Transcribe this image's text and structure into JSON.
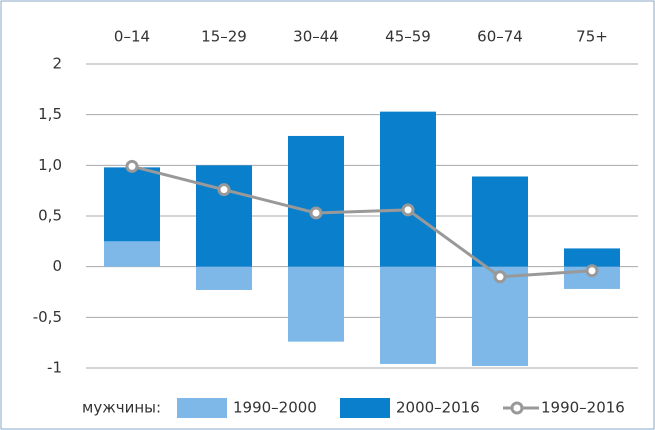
{
  "chart_data": {
    "type": "bar",
    "categories": [
      "0–14",
      "15–29",
      "30–44",
      "45–59",
      "60–74",
      "75+"
    ],
    "series": [
      {
        "name": "1990–2000",
        "color": "#7db8e8",
        "type": "bar",
        "values": [
          0.25,
          -0.23,
          -0.74,
          -0.96,
          -0.98,
          -0.22
        ]
      },
      {
        "name": "2000–2016",
        "color": "#0a80cd",
        "type": "bar",
        "values": [
          0.73,
          1.0,
          1.29,
          1.53,
          0.89,
          0.18
        ]
      },
      {
        "name": "1990–2016",
        "color": "#999999",
        "type": "line",
        "values": [
          0.99,
          0.76,
          0.53,
          0.56,
          -0.1,
          -0.04
        ]
      }
    ],
    "legend_title": "мужчины:",
    "ylim": [
      -1,
      2
    ],
    "yticks": [
      -1,
      {
        "value": -0.5,
        "label": "-0,5"
      },
      0,
      {
        "value": 0.5,
        "label": "0,5"
      },
      {
        "value": 1.0,
        "label": "1,0"
      },
      {
        "value": 1.5,
        "label": "1,5"
      },
      2
    ],
    "grid": true,
    "legend": "bottom"
  }
}
